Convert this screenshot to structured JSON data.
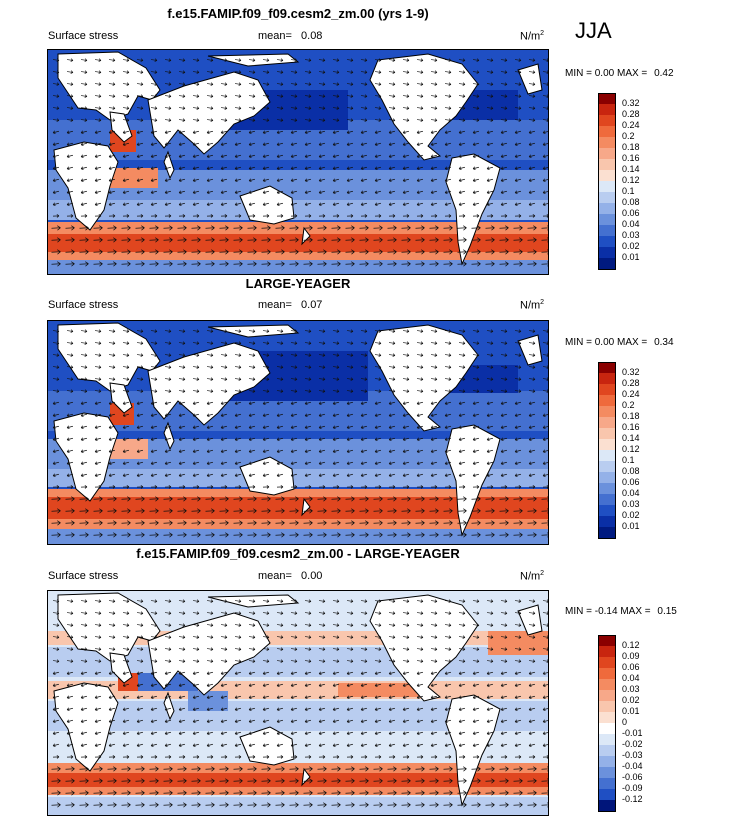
{
  "season": "JJA",
  "panels": [
    {
      "title": "f.e15.FAMIP.f09_f09.cesm2_zm.00 (yrs 1-9)",
      "left_label": "Surface stress",
      "mean_label": "mean=",
      "mean_value": "0.08",
      "units": "N/m",
      "units_sup": "2",
      "min_label": "MIN =",
      "min_value": "0.00",
      "max_label": "MAX =",
      "max_value": "0.42",
      "colorbar": {
        "labels": [
          "0.32",
          "0.28",
          "0.24",
          "0.2",
          "0.18",
          "0.16",
          "0.14",
          "0.12",
          "0.1",
          "0.08",
          "0.06",
          "0.04",
          "0.03",
          "0.02",
          "0.01"
        ],
        "colors": [
          "#8a0000",
          "#c8250f",
          "#e0461f",
          "#ef6a3c",
          "#f48b61",
          "#f7a889",
          "#f9c6ad",
          "#fbe0d1",
          "#dce8f7",
          "#b9cdf0",
          "#94b1e8",
          "#6b91dc",
          "#4470d0",
          "#1f4fc3",
          "#0a2fa6",
          "#001a80"
        ]
      }
    },
    {
      "title": "LARGE-YEAGER",
      "left_label": "Surface stress",
      "mean_label": "mean=",
      "mean_value": "0.07",
      "units": "N/m",
      "units_sup": "2",
      "min_label": "MIN =",
      "min_value": "0.00",
      "max_label": "MAX =",
      "max_value": "0.34",
      "colorbar": {
        "labels": [
          "0.32",
          "0.28",
          "0.24",
          "0.2",
          "0.18",
          "0.16",
          "0.14",
          "0.12",
          "0.1",
          "0.08",
          "0.06",
          "0.04",
          "0.03",
          "0.02",
          "0.01"
        ],
        "colors": [
          "#8a0000",
          "#c8250f",
          "#e0461f",
          "#ef6a3c",
          "#f48b61",
          "#f7a889",
          "#f9c6ad",
          "#fbe0d1",
          "#dce8f7",
          "#b9cdf0",
          "#94b1e8",
          "#6b91dc",
          "#4470d0",
          "#1f4fc3",
          "#0a2fa6",
          "#001a80"
        ]
      }
    },
    {
      "title": "f.e15.FAMIP.f09_f09.cesm2_zm.00 - LARGE-YEAGER",
      "left_label": "Surface stress",
      "mean_label": "mean=",
      "mean_value": "0.00",
      "units": "N/m",
      "units_sup": "2",
      "min_label": "MIN =",
      "min_value": "-0.14",
      "max_label": "MAX =",
      "max_value": "0.15",
      "colorbar": {
        "labels": [
          "0.12",
          "0.09",
          "0.06",
          "0.04",
          "0.03",
          "0.02",
          "0.01",
          "0",
          "-0.01",
          "-0.02",
          "-0.03",
          "-0.04",
          "-0.06",
          "-0.09",
          "-0.12"
        ],
        "colors": [
          "#8a0000",
          "#c8250f",
          "#e0461f",
          "#ef6a3c",
          "#f48b61",
          "#f7a889",
          "#f9c6ad",
          "#fbe0d1",
          "#ffffff",
          "#dce8f7",
          "#b9cdf0",
          "#94b1e8",
          "#6b91dc",
          "#4470d0",
          "#1f4fc3",
          "#00157a"
        ]
      }
    }
  ]
}
